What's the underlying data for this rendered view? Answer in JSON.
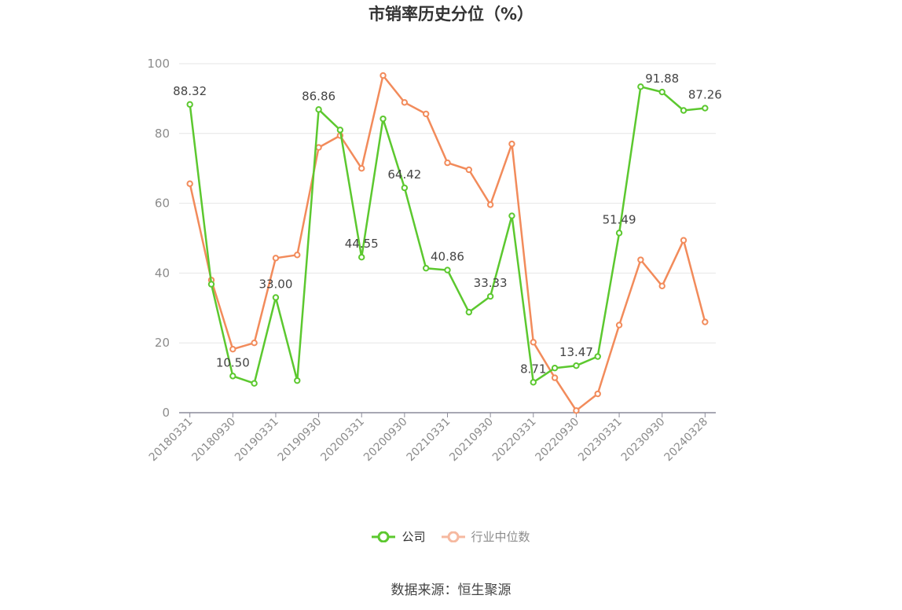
{
  "title": "市销率历史分位（%）",
  "source": "数据来源：恒生聚源",
  "colors": {
    "company": "#5cc82f",
    "industry": "#f28b5b",
    "industry_legend": "#f6b9a0",
    "axis": "#8c8c9a",
    "grid": "#e6e6e6"
  },
  "legend": [
    {
      "name": "公司",
      "icon": "circle-line-icon"
    },
    {
      "name": "行业中位数",
      "icon": "circle-line-icon"
    }
  ],
  "chart_data": {
    "type": "line",
    "title": "市销率历史分位（%）",
    "ylim": [
      0,
      100
    ],
    "yticks": [
      0,
      20,
      40,
      60,
      80,
      100
    ],
    "grid": true,
    "legend_position": "bottom",
    "x_tick_labels": [
      "20180331",
      "20180930",
      "20190331",
      "20190930",
      "20200331",
      "20200930",
      "20210331",
      "20210930",
      "20220331",
      "20220930",
      "20230331",
      "20230930",
      "20240328"
    ],
    "x": [
      "20180331",
      "20180630",
      "20180930",
      "20181231",
      "20190331",
      "20190630",
      "20190930",
      "20191231",
      "20200331",
      "20200630",
      "20200930",
      "20201231",
      "20210331",
      "20210630",
      "20210930",
      "20211231",
      "20220331",
      "20220630",
      "20220930",
      "20221231",
      "20230331",
      "20230630",
      "20230930",
      "20231231",
      "20240328"
    ],
    "series": [
      {
        "name": "公司",
        "values": [
          88.32,
          36.8,
          10.5,
          8.4,
          33.0,
          9.2,
          86.86,
          81.0,
          44.55,
          84.2,
          64.42,
          41.4,
          40.86,
          28.8,
          33.33,
          56.4,
          8.71,
          12.8,
          13.47,
          16.1,
          51.49,
          93.4,
          91.88,
          86.6,
          87.26
        ],
        "labels": [
          "88.32",
          null,
          "10.50",
          null,
          "33.00",
          null,
          "86.86",
          null,
          "44.55",
          null,
          "64.42",
          null,
          "40.86",
          null,
          "33.33",
          null,
          "8.71",
          null,
          "13.47",
          null,
          "51.49",
          null,
          "91.88",
          null,
          "87.26"
        ]
      },
      {
        "name": "行业中位数",
        "values": [
          65.6,
          38.0,
          18.2,
          20.0,
          44.3,
          45.2,
          76.0,
          79.4,
          70.0,
          96.6,
          88.9,
          85.6,
          71.6,
          69.6,
          59.6,
          77.0,
          20.2,
          10.0,
          0.6,
          5.4,
          25.1,
          43.8,
          36.3,
          49.4,
          26.0
        ]
      }
    ]
  }
}
